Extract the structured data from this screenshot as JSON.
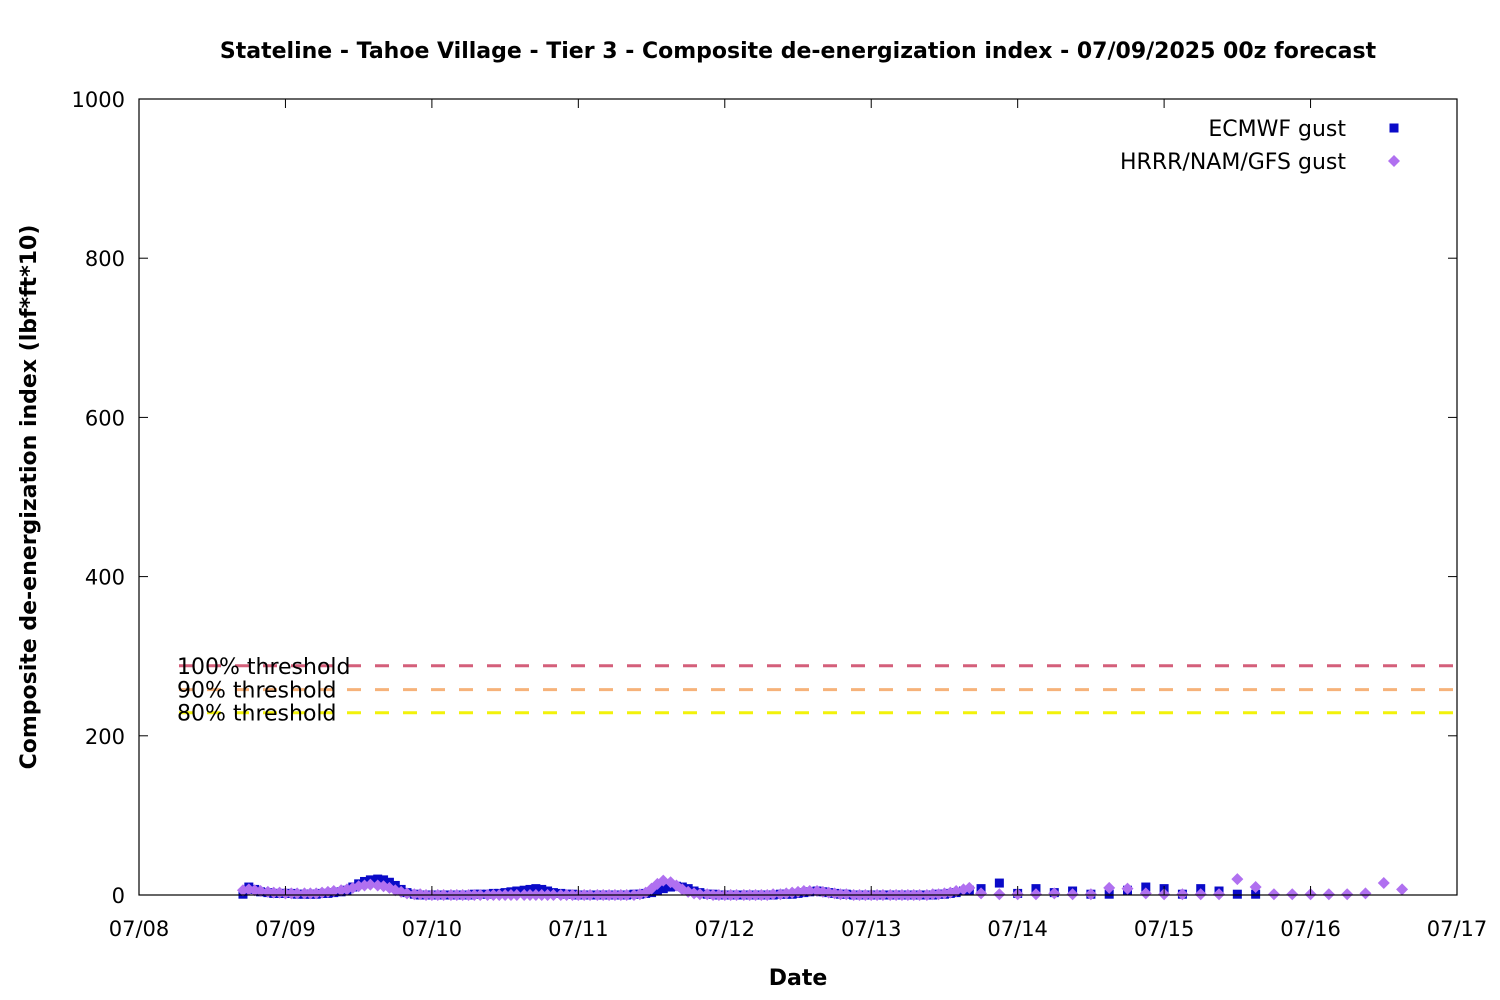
{
  "chart_data": {
    "type": "scatter",
    "title": "Stateline - Tahoe Village - Tier 3 - Composite de-energization index - 07/09/2025 00z forecast",
    "xlabel": "Date",
    "ylabel": "Composite de-energization index (lbf*ft*10)",
    "xlim": [
      "07/08",
      "07/17"
    ],
    "ylim": [
      0,
      1000
    ],
    "x_ticks": [
      "07/08",
      "07/09",
      "07/10",
      "07/11",
      "07/12",
      "07/13",
      "07/14",
      "07/15",
      "07/16",
      "07/17"
    ],
    "y_ticks": [
      0,
      200,
      400,
      600,
      800,
      1000
    ],
    "grid": false,
    "legend": "top-right",
    "thresholds": [
      {
        "name": "100% threshold",
        "value": 288,
        "color": "#d45f7a"
      },
      {
        "name": "90% threshold",
        "value": 258,
        "color": "#f6b27a"
      },
      {
        "name": "80% threshold",
        "value": 229,
        "color": "#f2f20a"
      }
    ],
    "series": [
      {
        "name": "ECMWF gust",
        "marker": "square",
        "color": "#0a0ac8",
        "x_units": "days since 07/08 00z",
        "points": [
          [
            0.71,
            1
          ],
          [
            0.75,
            10
          ],
          [
            0.79,
            7
          ],
          [
            0.83,
            4
          ],
          [
            0.88,
            3
          ],
          [
            0.92,
            2
          ],
          [
            0.96,
            2
          ],
          [
            1.0,
            2
          ],
          [
            1.04,
            2
          ],
          [
            1.08,
            1
          ],
          [
            1.13,
            1
          ],
          [
            1.17,
            1
          ],
          [
            1.21,
            1
          ],
          [
            1.25,
            2
          ],
          [
            1.29,
            2
          ],
          [
            1.33,
            3
          ],
          [
            1.38,
            4
          ],
          [
            1.42,
            6
          ],
          [
            1.46,
            10
          ],
          [
            1.5,
            14
          ],
          [
            1.54,
            17
          ],
          [
            1.58,
            19
          ],
          [
            1.63,
            20
          ],
          [
            1.67,
            19
          ],
          [
            1.71,
            16
          ],
          [
            1.75,
            12
          ],
          [
            1.79,
            7
          ],
          [
            1.83,
            3
          ],
          [
            1.88,
            1
          ],
          [
            1.92,
            0
          ],
          [
            1.96,
            0
          ],
          [
            2.0,
            0
          ],
          [
            2.04,
            0
          ],
          [
            2.08,
            0
          ],
          [
            2.13,
            0
          ],
          [
            2.17,
            0
          ],
          [
            2.21,
            0
          ],
          [
            2.25,
            0
          ],
          [
            2.29,
            1
          ],
          [
            2.33,
            1
          ],
          [
            2.38,
            1
          ],
          [
            2.42,
            2
          ],
          [
            2.46,
            2
          ],
          [
            2.5,
            3
          ],
          [
            2.54,
            4
          ],
          [
            2.58,
            5
          ],
          [
            2.63,
            6
          ],
          [
            2.67,
            7
          ],
          [
            2.71,
            8
          ],
          [
            2.75,
            7
          ],
          [
            2.79,
            5
          ],
          [
            2.83,
            3
          ],
          [
            2.88,
            2
          ],
          [
            2.92,
            1
          ],
          [
            2.96,
            1
          ],
          [
            3.0,
            0
          ],
          [
            3.04,
            0
          ],
          [
            3.08,
            0
          ],
          [
            3.13,
            0
          ],
          [
            3.17,
            0
          ],
          [
            3.21,
            0
          ],
          [
            3.25,
            0
          ],
          [
            3.29,
            0
          ],
          [
            3.33,
            0
          ],
          [
            3.38,
            1
          ],
          [
            3.42,
            1
          ],
          [
            3.46,
            2
          ],
          [
            3.5,
            3
          ],
          [
            3.54,
            5
          ],
          [
            3.58,
            8
          ],
          [
            3.63,
            10
          ],
          [
            3.67,
            11
          ],
          [
            3.71,
            10
          ],
          [
            3.75,
            8
          ],
          [
            3.79,
            5
          ],
          [
            3.83,
            3
          ],
          [
            3.88,
            1
          ],
          [
            3.92,
            1
          ],
          [
            3.96,
            0
          ],
          [
            4.0,
            0
          ],
          [
            4.04,
            0
          ],
          [
            4.08,
            0
          ],
          [
            4.13,
            0
          ],
          [
            4.17,
            0
          ],
          [
            4.21,
            0
          ],
          [
            4.25,
            0
          ],
          [
            4.29,
            0
          ],
          [
            4.33,
            0
          ],
          [
            4.38,
            1
          ],
          [
            4.42,
            1
          ],
          [
            4.46,
            1
          ],
          [
            4.5,
            2
          ],
          [
            4.54,
            3
          ],
          [
            4.58,
            4
          ],
          [
            4.63,
            5
          ],
          [
            4.67,
            4
          ],
          [
            4.71,
            3
          ],
          [
            4.75,
            2
          ],
          [
            4.79,
            1
          ],
          [
            4.83,
            1
          ],
          [
            4.88,
            0
          ],
          [
            4.92,
            0
          ],
          [
            4.96,
            0
          ],
          [
            5.0,
            0
          ],
          [
            5.04,
            0
          ],
          [
            5.08,
            0
          ],
          [
            5.13,
            0
          ],
          [
            5.17,
            0
          ],
          [
            5.21,
            0
          ],
          [
            5.25,
            0
          ],
          [
            5.29,
            0
          ],
          [
            5.33,
            0
          ],
          [
            5.38,
            0
          ],
          [
            5.42,
            0
          ],
          [
            5.46,
            1
          ],
          [
            5.5,
            1
          ],
          [
            5.54,
            2
          ],
          [
            5.58,
            3
          ],
          [
            5.63,
            5
          ],
          [
            5.67,
            6
          ],
          [
            5.75,
            8
          ],
          [
            5.875,
            15
          ],
          [
            6.0,
            2
          ],
          [
            6.125,
            8
          ],
          [
            6.25,
            3
          ],
          [
            6.375,
            5
          ],
          [
            6.5,
            1
          ],
          [
            6.625,
            1
          ],
          [
            6.75,
            6
          ],
          [
            6.875,
            10
          ],
          [
            7.0,
            8
          ],
          [
            7.125,
            1
          ],
          [
            7.25,
            8
          ],
          [
            7.375,
            5
          ],
          [
            7.5,
            1
          ],
          [
            7.625,
            1
          ]
        ]
      },
      {
        "name": "HRRR/NAM/GFS gust",
        "marker": "diamond",
        "color": "#b070f0",
        "x_units": "days since 07/08 00z",
        "points": [
          [
            0.71,
            6
          ],
          [
            0.75,
            7
          ],
          [
            0.79,
            6
          ],
          [
            0.83,
            5
          ],
          [
            0.88,
            4
          ],
          [
            0.92,
            3
          ],
          [
            0.96,
            3
          ],
          [
            1.0,
            2
          ],
          [
            1.04,
            2
          ],
          [
            1.08,
            2
          ],
          [
            1.13,
            2
          ],
          [
            1.17,
            2
          ],
          [
            1.21,
            2
          ],
          [
            1.25,
            3
          ],
          [
            1.29,
            4
          ],
          [
            1.33,
            5
          ],
          [
            1.38,
            6
          ],
          [
            1.42,
            7
          ],
          [
            1.46,
            9
          ],
          [
            1.5,
            11
          ],
          [
            1.54,
            12
          ],
          [
            1.58,
            13
          ],
          [
            1.63,
            12
          ],
          [
            1.67,
            11
          ],
          [
            1.71,
            9
          ],
          [
            1.75,
            6
          ],
          [
            1.79,
            4
          ],
          [
            1.83,
            2
          ],
          [
            1.88,
            1
          ],
          [
            1.92,
            1
          ],
          [
            1.96,
            0
          ],
          [
            2.0,
            0
          ],
          [
            2.04,
            0
          ],
          [
            2.08,
            0
          ],
          [
            2.13,
            0
          ],
          [
            2.17,
            0
          ],
          [
            2.21,
            0
          ],
          [
            2.25,
            0
          ],
          [
            2.29,
            0
          ],
          [
            2.33,
            0
          ],
          [
            2.38,
            0
          ],
          [
            2.42,
            0
          ],
          [
            2.46,
            0
          ],
          [
            2.5,
            0
          ],
          [
            2.54,
            0
          ],
          [
            2.58,
            0
          ],
          [
            2.63,
            0
          ],
          [
            2.67,
            0
          ],
          [
            2.71,
            0
          ],
          [
            2.75,
            0
          ],
          [
            2.79,
            0
          ],
          [
            2.83,
            0
          ],
          [
            2.88,
            0
          ],
          [
            2.92,
            0
          ],
          [
            2.96,
            0
          ],
          [
            3.0,
            0
          ],
          [
            3.04,
            0
          ],
          [
            3.08,
            0
          ],
          [
            3.13,
            0
          ],
          [
            3.17,
            0
          ],
          [
            3.21,
            0
          ],
          [
            3.25,
            0
          ],
          [
            3.29,
            0
          ],
          [
            3.33,
            0
          ],
          [
            3.38,
            0
          ],
          [
            3.42,
            1
          ],
          [
            3.46,
            3
          ],
          [
            3.5,
            8
          ],
          [
            3.54,
            14
          ],
          [
            3.58,
            18
          ],
          [
            3.63,
            16
          ],
          [
            3.67,
            12
          ],
          [
            3.71,
            7
          ],
          [
            3.75,
            4
          ],
          [
            3.79,
            2
          ],
          [
            3.83,
            1
          ],
          [
            3.88,
            1
          ],
          [
            3.92,
            0
          ],
          [
            3.96,
            0
          ],
          [
            4.0,
            0
          ],
          [
            4.04,
            0
          ],
          [
            4.08,
            0
          ],
          [
            4.13,
            0
          ],
          [
            4.17,
            0
          ],
          [
            4.21,
            0
          ],
          [
            4.25,
            0
          ],
          [
            4.29,
            0
          ],
          [
            4.33,
            1
          ],
          [
            4.38,
            1
          ],
          [
            4.42,
            2
          ],
          [
            4.46,
            3
          ],
          [
            4.5,
            4
          ],
          [
            4.54,
            5
          ],
          [
            4.58,
            5
          ],
          [
            4.63,
            5
          ],
          [
            4.67,
            4
          ],
          [
            4.71,
            3
          ],
          [
            4.75,
            2
          ],
          [
            4.79,
            1
          ],
          [
            4.83,
            1
          ],
          [
            4.88,
            0
          ],
          [
            4.92,
            0
          ],
          [
            4.96,
            0
          ],
          [
            5.0,
            0
          ],
          [
            5.04,
            0
          ],
          [
            5.08,
            0
          ],
          [
            5.13,
            0
          ],
          [
            5.17,
            0
          ],
          [
            5.21,
            0
          ],
          [
            5.25,
            0
          ],
          [
            5.29,
            0
          ],
          [
            5.33,
            0
          ],
          [
            5.38,
            0
          ],
          [
            5.42,
            1
          ],
          [
            5.46,
            1
          ],
          [
            5.5,
            2
          ],
          [
            5.54,
            3
          ],
          [
            5.58,
            5
          ],
          [
            5.63,
            7
          ],
          [
            5.67,
            9
          ],
          [
            5.75,
            2
          ],
          [
            5.875,
            1
          ],
          [
            6.0,
            1
          ],
          [
            6.125,
            1
          ],
          [
            6.25,
            2
          ],
          [
            6.375,
            1
          ],
          [
            6.5,
            1
          ],
          [
            6.625,
            9
          ],
          [
            6.75,
            8
          ],
          [
            6.875,
            2
          ],
          [
            7.0,
            1
          ],
          [
            7.125,
            1
          ],
          [
            7.25,
            1
          ],
          [
            7.375,
            1
          ],
          [
            7.5,
            20
          ],
          [
            7.625,
            10
          ],
          [
            7.75,
            1
          ],
          [
            7.875,
            1
          ],
          [
            8.0,
            1
          ],
          [
            8.125,
            1
          ],
          [
            8.25,
            1
          ],
          [
            8.375,
            2
          ],
          [
            8.5,
            15
          ],
          [
            8.625,
            7
          ]
        ]
      }
    ]
  }
}
